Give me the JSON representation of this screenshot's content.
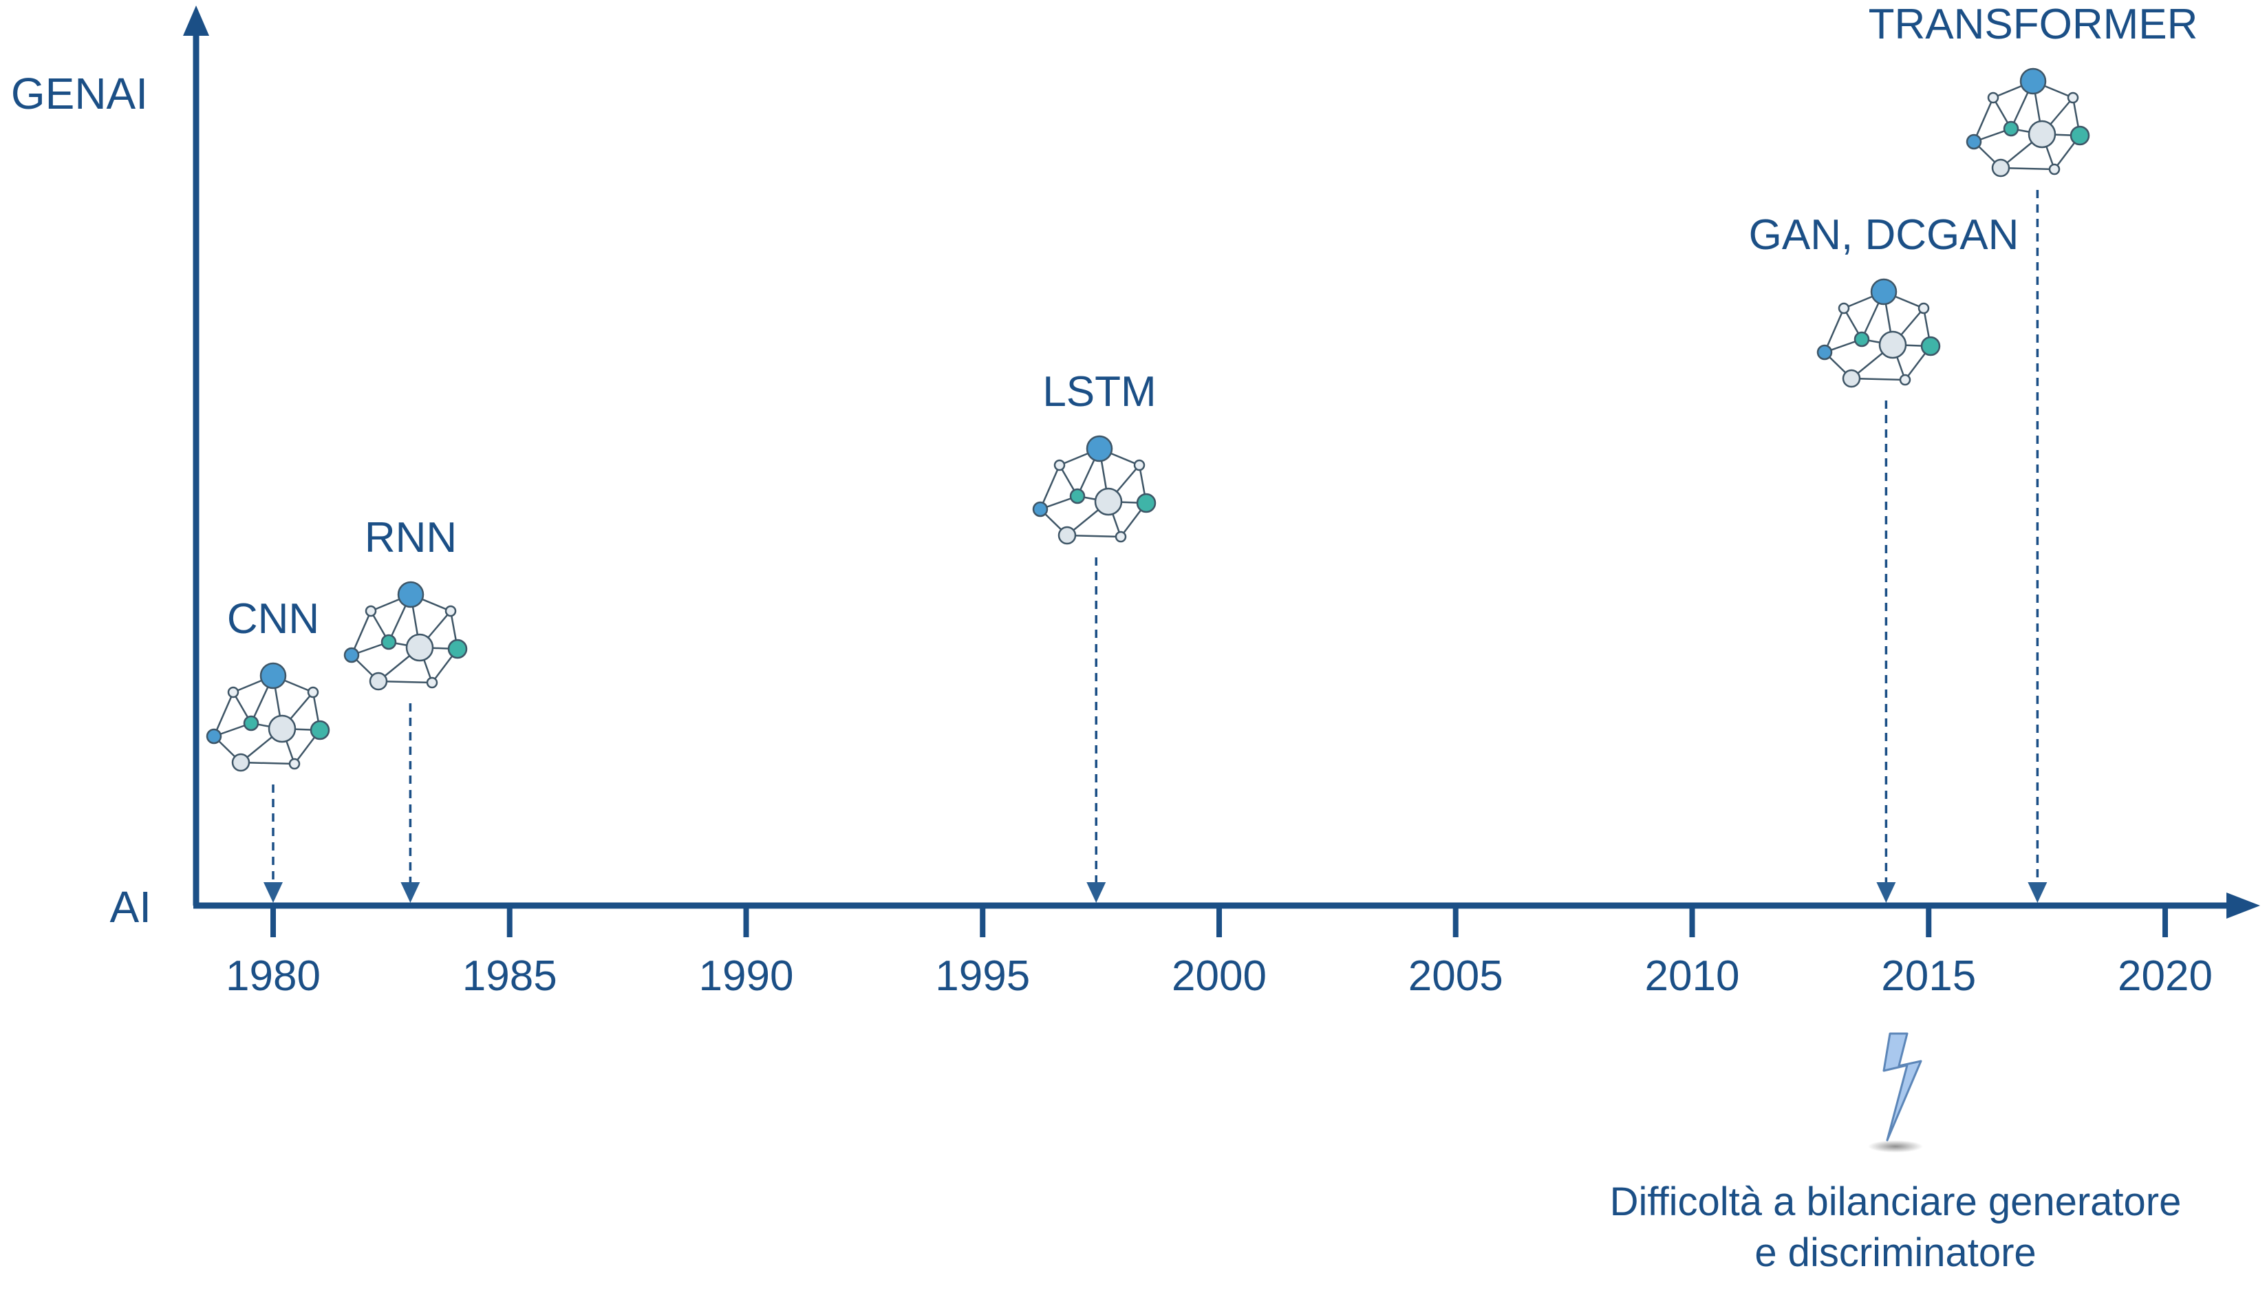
{
  "axes": {
    "y_top_label": "GENAI",
    "y_bottom_label": "AI",
    "x_ticks": [
      "1980",
      "1985",
      "1990",
      "1995",
      "2000",
      "2005",
      "2010",
      "2015",
      "2020"
    ]
  },
  "milestones": [
    {
      "label": "CNN",
      "year": 1980.0
    },
    {
      "label": "RNN",
      "year": 1982.9
    },
    {
      "label": "LSTM",
      "year": 1997.4
    },
    {
      "label": "GAN, DCGAN",
      "year": 2014.1
    },
    {
      "label": "TRANSFORMER",
      "year": 2017.3
    }
  ],
  "note": {
    "line1": "Difficoltà a bilanciare generatore",
    "line2": "e discriminatore"
  },
  "colors": {
    "axis": "#1b4f86",
    "text": "#1b4f86",
    "node_blue": "#4b9bd0",
    "node_teal": "#3fb4a8",
    "node_light": "#dde5eb",
    "node_pale": "#e8eef3",
    "lightning": "#a9c8ee"
  }
}
